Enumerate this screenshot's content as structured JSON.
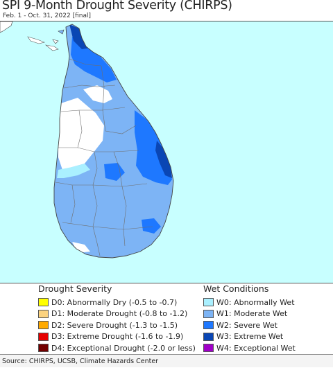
{
  "header": {
    "title": "SPI 9-Month Drought Severity (CHIRPS)",
    "subtitle": "Feb. 1 - Oct. 31, 2022 [final]"
  },
  "map": {
    "ocean_color": "#c8ffff",
    "land_color": "#ffffff",
    "dominant_class": "W1",
    "wettest_regions": [
      "northern tip",
      "east coast"
    ],
    "driest_regions": [
      "central-western inland"
    ]
  },
  "legend": {
    "drought": {
      "title": "Drought Severity",
      "items": [
        {
          "code": "D0",
          "label": "D0: Abnormally Dry (-0.5 to -0.7)",
          "color": "#ffff00"
        },
        {
          "code": "D1",
          "label": "D1: Moderate Drought (-0.8 to -1.2)",
          "color": "#fcd37f"
        },
        {
          "code": "D2",
          "label": "D2: Severe Drought (-1.3 to -1.5)",
          "color": "#ffaa00"
        },
        {
          "code": "D3",
          "label": "D3: Extreme Drought (-1.6 to -1.9)",
          "color": "#e60000"
        },
        {
          "code": "D4",
          "label": "D4: Exceptional Drought (-2.0 or less)",
          "color": "#730000"
        }
      ]
    },
    "wet": {
      "title": "Wet Conditions",
      "items": [
        {
          "code": "W0",
          "label": "W0: Abnormally Wet",
          "color": "#aaf0ff"
        },
        {
          "code": "W1",
          "label": "W1: Moderate Wet",
          "color": "#7db4f5"
        },
        {
          "code": "W2",
          "label": "W2: Severe Wet",
          "color": "#1e78ff"
        },
        {
          "code": "W3",
          "label": "W3: Extreme Wet",
          "color": "#0a46b4"
        },
        {
          "code": "W4",
          "label": "W4: Exceptional Wet",
          "color": "#a000c8"
        }
      ]
    }
  },
  "footer": {
    "source": "Source: CHIRPS, UCSB, Climate Hazards Center"
  }
}
